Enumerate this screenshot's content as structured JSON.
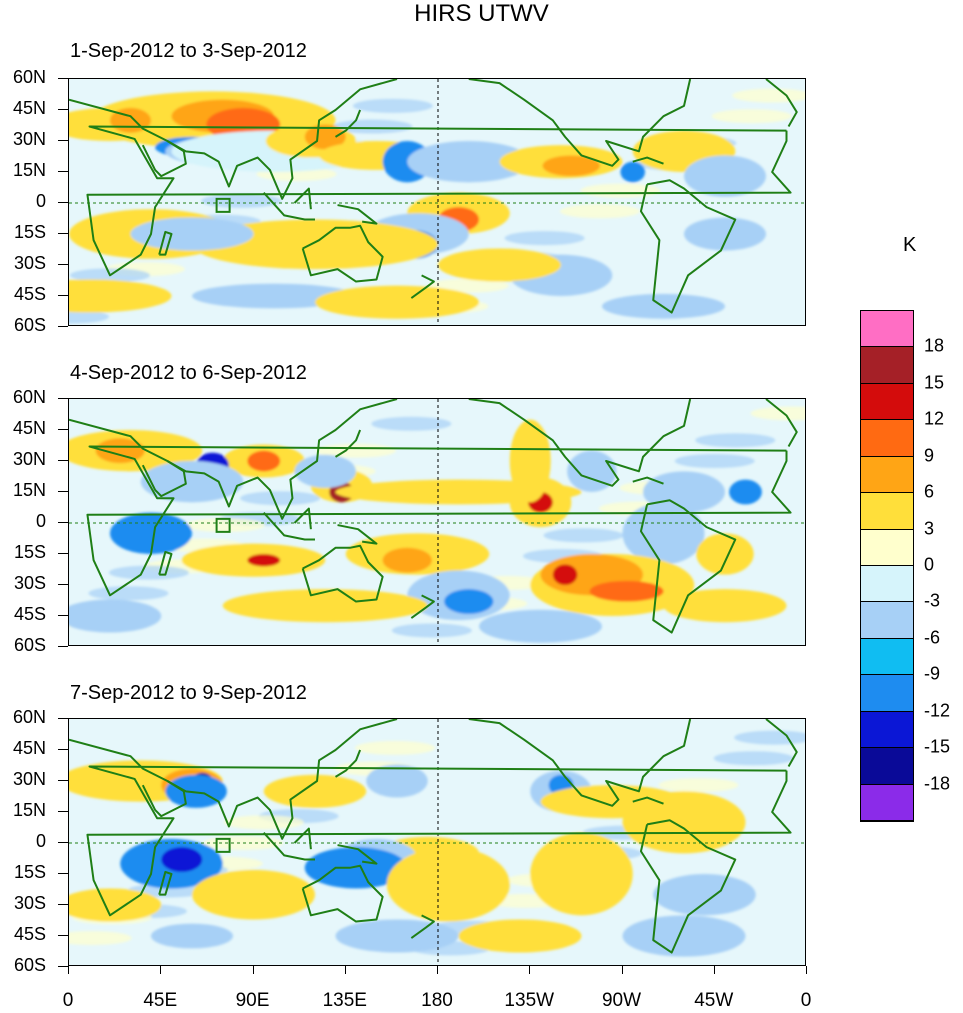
{
  "title": "HIRS UTWV",
  "unit": "K",
  "panels": [
    {
      "label": "1-Sep-2012 to 3-Sep-2012"
    },
    {
      "label": "4-Sep-2012 to 6-Sep-2012"
    },
    {
      "label": "7-Sep-2012 to 9-Sep-2012"
    }
  ],
  "lat_labels": [
    "60N",
    "45N",
    "30N",
    "15N",
    "0",
    "15S",
    "30S",
    "45S",
    "60S"
  ],
  "lon_labels": [
    "0",
    "45E",
    "90E",
    "135E",
    "180",
    "135W",
    "90W",
    "45W",
    "0"
  ],
  "colorbar": {
    "labels": [
      "18",
      "15",
      "12",
      "9",
      "6",
      "3",
      "0",
      "-3",
      "-6",
      "-9",
      "-12",
      "-15",
      "-18"
    ],
    "colors": [
      "#ff6ec4",
      "#a52027",
      "#d40c0c",
      "#ff6a12",
      "#ffa515",
      "#ffdf3a",
      "#ffffcd",
      "#d6f4fb",
      "#a7d0f6",
      "#10bdf2",
      "#1e8cf0",
      "#0b17d6",
      "#0a0a98",
      "#8b2be9"
    ]
  },
  "map_colors": {
    "coast": "#1f7f16",
    "zero_line": "#1f7f16",
    "date_line": "#000000"
  }
}
